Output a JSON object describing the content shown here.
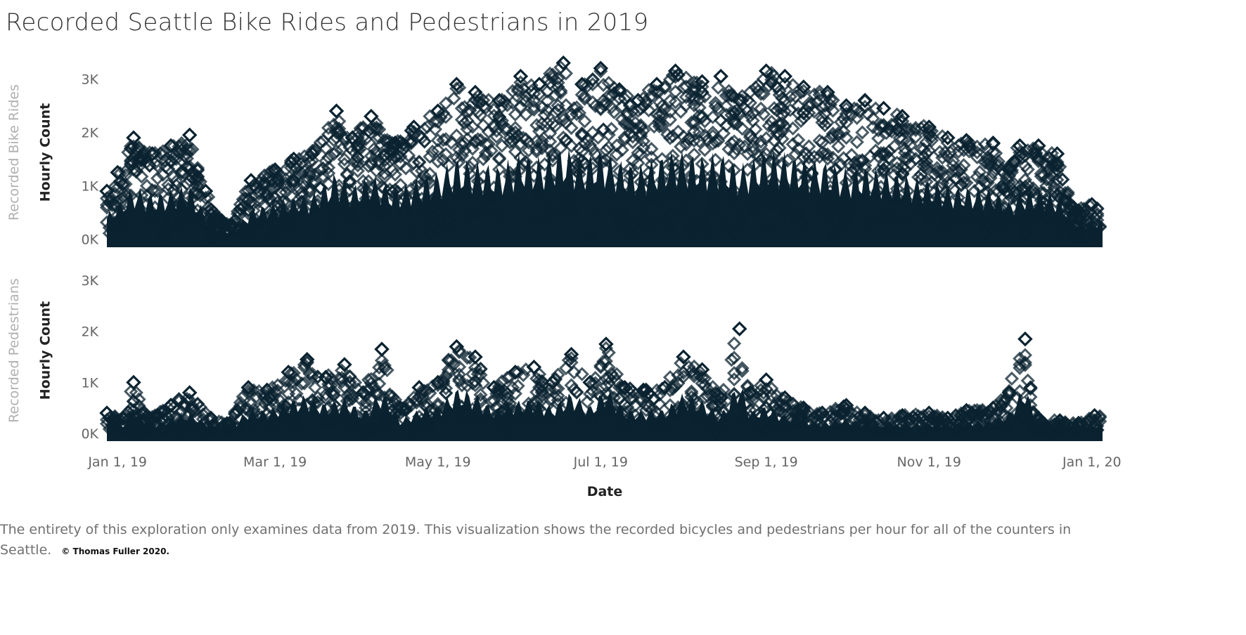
{
  "title": "Recorded Seattle Bike Rides and Pedestrians in 2019",
  "footer": {
    "text": "The entirety of this exploration only examines data from 2019. This visualization shows the recorded bicycles and pedestrians per hour for all of the counters in Seattle.",
    "copyright": "© Thomas Fuller 2020."
  },
  "colors": {
    "mark": "#0b2330",
    "title": "#333333",
    "row_label": "#b0b0b0",
    "tick_label": "#666666"
  },
  "chart_data": {
    "type": "scatter",
    "marker": "diamond-outline",
    "xlabel": "Date",
    "x_range": [
      "2018-12-28",
      "2020-01-05"
    ],
    "x_ticks": [
      {
        "date": "2019-01-01",
        "label": "Jan 1, 19"
      },
      {
        "date": "2019-03-01",
        "label": "Mar 1, 19"
      },
      {
        "date": "2019-05-01",
        "label": "May 1, 19"
      },
      {
        "date": "2019-07-01",
        "label": "Jul 1, 19"
      },
      {
        "date": "2019-09-01",
        "label": "Sep 1, 19"
      },
      {
        "date": "2019-11-01",
        "label": "Nov 1, 19"
      },
      {
        "date": "2020-01-01",
        "label": "Jan 1, 20"
      }
    ],
    "panels": [
      {
        "row_label": "Recorded Bike Rides",
        "ylabel": "Hourly Count",
        "ylim": [
          -150,
          3400
        ],
        "y_ticks": [
          {
            "value": 0,
            "label": "0K"
          },
          {
            "value": 1000,
            "label": "1K"
          },
          {
            "value": 2000,
            "label": "2K"
          },
          {
            "value": 3000,
            "label": "3K"
          }
        ],
        "peaks": [
          [
            "2018-12-28",
            900
          ],
          [
            "2019-01-01",
            1250
          ],
          [
            "2019-01-07",
            1900
          ],
          [
            "2019-01-14",
            1600
          ],
          [
            "2019-01-21",
            1750
          ],
          [
            "2019-01-28",
            1950
          ],
          [
            "2019-02-03",
            900
          ],
          [
            "2019-02-09",
            350
          ],
          [
            "2019-02-13",
            250
          ],
          [
            "2019-02-20",
            1100
          ],
          [
            "2019-03-01",
            1300
          ],
          [
            "2019-03-08",
            1500
          ],
          [
            "2019-03-15",
            1600
          ],
          [
            "2019-03-24",
            2400
          ],
          [
            "2019-03-30",
            1900
          ],
          [
            "2019-04-06",
            2300
          ],
          [
            "2019-04-15",
            1800
          ],
          [
            "2019-04-22",
            2100
          ],
          [
            "2019-05-01",
            2400
          ],
          [
            "2019-05-08",
            2900
          ],
          [
            "2019-05-15",
            2750
          ],
          [
            "2019-05-24",
            2600
          ],
          [
            "2019-06-01",
            3050
          ],
          [
            "2019-06-08",
            2900
          ],
          [
            "2019-06-17",
            3300
          ],
          [
            "2019-06-24",
            2900
          ],
          [
            "2019-07-01",
            3200
          ],
          [
            "2019-07-08",
            2800
          ],
          [
            "2019-07-15",
            2600
          ],
          [
            "2019-07-22",
            2900
          ],
          [
            "2019-07-29",
            3150
          ],
          [
            "2019-08-08",
            2950
          ],
          [
            "2019-08-15",
            3050
          ],
          [
            "2019-08-22",
            2600
          ],
          [
            "2019-09-01",
            3150
          ],
          [
            "2019-09-08",
            3050
          ],
          [
            "2019-09-15",
            2850
          ],
          [
            "2019-09-24",
            2750
          ],
          [
            "2019-10-01",
            2500
          ],
          [
            "2019-10-08",
            2600
          ],
          [
            "2019-10-15",
            2450
          ],
          [
            "2019-10-22",
            2300
          ],
          [
            "2019-11-01",
            2100
          ],
          [
            "2019-11-08",
            1900
          ],
          [
            "2019-11-15",
            1850
          ],
          [
            "2019-11-25",
            1800
          ],
          [
            "2019-12-01",
            1300
          ],
          [
            "2019-12-05",
            1750
          ],
          [
            "2019-12-12",
            1750
          ],
          [
            "2019-12-19",
            1600
          ],
          [
            "2019-12-25",
            600
          ],
          [
            "2020-01-01",
            650
          ]
        ]
      },
      {
        "row_label": "Recorded Pedestrians",
        "ylabel": "Hourly Count",
        "ylim": [
          -150,
          3400
        ],
        "y_ticks": [
          {
            "value": 0,
            "label": "0K"
          },
          {
            "value": 1000,
            "label": "1K"
          },
          {
            "value": 2000,
            "label": "2K"
          },
          {
            "value": 3000,
            "label": "3K"
          }
        ],
        "peaks": [
          [
            "2018-12-28",
            400
          ],
          [
            "2019-01-03",
            300
          ],
          [
            "2019-01-07",
            1000
          ],
          [
            "2019-01-13",
            300
          ],
          [
            "2019-01-21",
            550
          ],
          [
            "2019-01-28",
            800
          ],
          [
            "2019-02-05",
            300
          ],
          [
            "2019-02-12",
            200
          ],
          [
            "2019-02-19",
            900
          ],
          [
            "2019-02-26",
            850
          ],
          [
            "2019-03-06",
            1200
          ],
          [
            "2019-03-13",
            1450
          ],
          [
            "2019-03-20",
            1100
          ],
          [
            "2019-03-27",
            1350
          ],
          [
            "2019-04-03",
            800
          ],
          [
            "2019-04-10",
            1650
          ],
          [
            "2019-04-17",
            500
          ],
          [
            "2019-04-24",
            900
          ],
          [
            "2019-05-01",
            1000
          ],
          [
            "2019-05-08",
            1700
          ],
          [
            "2019-05-15",
            1500
          ],
          [
            "2019-05-22",
            900
          ],
          [
            "2019-05-30",
            1200
          ],
          [
            "2019-06-06",
            1300
          ],
          [
            "2019-06-13",
            1000
          ],
          [
            "2019-06-20",
            1550
          ],
          [
            "2019-06-27",
            1000
          ],
          [
            "2019-07-03",
            1750
          ],
          [
            "2019-07-10",
            900
          ],
          [
            "2019-07-17",
            850
          ],
          [
            "2019-07-25",
            900
          ],
          [
            "2019-08-01",
            1500
          ],
          [
            "2019-08-08",
            1250
          ],
          [
            "2019-08-15",
            700
          ],
          [
            "2019-08-22",
            2050
          ],
          [
            "2019-08-26",
            800
          ],
          [
            "2019-09-01",
            1050
          ],
          [
            "2019-09-08",
            700
          ],
          [
            "2019-09-15",
            500
          ],
          [
            "2019-09-22",
            400
          ],
          [
            "2019-10-01",
            550
          ],
          [
            "2019-10-08",
            400
          ],
          [
            "2019-10-15",
            300
          ],
          [
            "2019-10-22",
            350
          ],
          [
            "2019-11-01",
            400
          ],
          [
            "2019-11-08",
            300
          ],
          [
            "2019-11-15",
            450
          ],
          [
            "2019-11-25",
            500
          ],
          [
            "2019-12-01",
            800
          ],
          [
            "2019-12-07",
            1850
          ],
          [
            "2019-12-12",
            300
          ],
          [
            "2019-12-20",
            250
          ],
          [
            "2019-12-27",
            200
          ],
          [
            "2020-01-02",
            350
          ]
        ]
      }
    ]
  }
}
